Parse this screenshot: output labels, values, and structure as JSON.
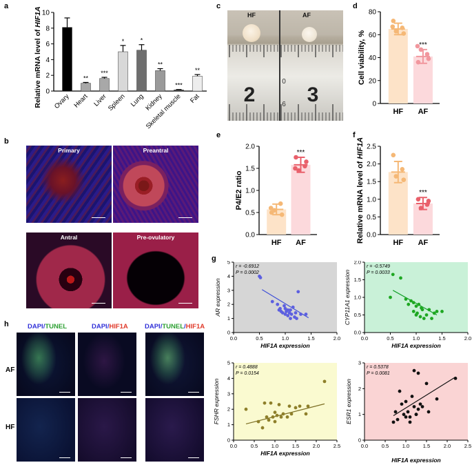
{
  "panels": {
    "a": {
      "label": "a",
      "chart_data": {
        "type": "bar",
        "ylabel": "Relative mRNA level of HIF1A",
        "ylim": [
          0,
          10
        ],
        "yticks": [
          "0",
          "2",
          "4",
          "6",
          "8",
          "10"
        ],
        "categories": [
          "Ovary",
          "Heart",
          "Liver",
          "Spleen",
          "Lung",
          "Kidney",
          "Skeletal muscle",
          "Fat"
        ],
        "values": [
          8.1,
          1.0,
          1.6,
          5.0,
          5.2,
          2.6,
          0.15,
          1.9
        ],
        "errors": [
          1.2,
          0.1,
          0.15,
          0.8,
          0.7,
          0.25,
          0.05,
          0.2
        ],
        "stars": [
          "",
          "**",
          "***",
          "*",
          "*",
          "**",
          "***",
          "**"
        ],
        "colors": [
          "#000000",
          "#a8a8a8",
          "#a8a8a8",
          "#d8d8d8",
          "#6e6e6e",
          "#9a9a9a",
          "#4a4a4a",
          "#ededed"
        ]
      }
    },
    "b": {
      "label": "b",
      "titles": [
        "Primary",
        "Preantral",
        "Antral",
        "Pre-ovulatory"
      ]
    },
    "c": {
      "label": "c",
      "left_label": "HF",
      "right_label": "AF",
      "ruler_digits": [
        "2",
        "3",
        "0",
        "6"
      ]
    },
    "d": {
      "label": "d",
      "chart_data": {
        "type": "bar",
        "ylabel": "Cell viability, %",
        "ylim": [
          0,
          80
        ],
        "yticks": [
          "0",
          "20",
          "40",
          "60",
          "80"
        ],
        "categories": [
          "HF",
          "AF"
        ],
        "values": [
          65,
          41
        ],
        "errors": [
          5,
          6
        ],
        "points": [
          [
            72,
            66,
            63,
            61,
            67
          ],
          [
            36,
            43,
            47,
            39,
            50
          ]
        ],
        "stars": [
          "",
          "***"
        ],
        "fill_colors": [
          "#fde3c8",
          "#fcd9dc"
        ],
        "point_colors": [
          "#f5b876",
          "#f1979e"
        ]
      }
    },
    "e": {
      "label": "e",
      "chart_data": {
        "type": "bar",
        "ylabel": "P4/E2 ratio",
        "ylim": [
          0,
          2.0
        ],
        "yticks": [
          "0.0",
          "0.5",
          "1.0",
          "1.5",
          "2.0"
        ],
        "categories": [
          "HF",
          "AF"
        ],
        "values": [
          0.57,
          1.58
        ],
        "errors": [
          0.12,
          0.17
        ],
        "points": [
          [
            0.5,
            0.7,
            0.55,
            0.45,
            0.6
          ],
          [
            1.75,
            1.55,
            1.45,
            1.65,
            1.5
          ]
        ],
        "stars": [
          "",
          "***"
        ],
        "fill_colors": [
          "#fde3c8",
          "#fcd9dc"
        ],
        "point_colors": [
          "#f5b876",
          "#e9606b"
        ]
      }
    },
    "f": {
      "label": "f",
      "chart_data": {
        "type": "bar",
        "ylabel": "Relative mRNA level of HIF1A",
        "ylim": [
          0,
          2.5
        ],
        "yticks": [
          "0.0",
          "0.5",
          "1.0",
          "1.5",
          "2.0",
          "2.5"
        ],
        "categories": [
          "HF",
          "AF"
        ],
        "values": [
          1.77,
          0.88
        ],
        "errors": [
          0.3,
          0.17
        ],
        "points": [
          [
            2.25,
            1.85,
            1.65,
            1.55
          ],
          [
            1.0,
            0.85,
            0.75,
            0.95
          ]
        ],
        "stars": [
          "",
          "***"
        ],
        "fill_colors": [
          "#fde3c8",
          "#fcd9dc"
        ],
        "point_colors": [
          "#f5b876",
          "#e9606b"
        ]
      }
    },
    "g": {
      "label": "g",
      "charts": [
        {
          "type": "scatter",
          "ylabel": "AR expression",
          "xlabel": "HIF1A expression",
          "r_text": "r = -0.6912",
          "p_text": "P = 0.0002",
          "xlim": [
            0,
            2.0
          ],
          "ylim": [
            0,
            5
          ],
          "xticks": [
            "0.0",
            "0.5",
            "1.0",
            "1.5",
            "2.0"
          ],
          "yticks": [
            "0",
            "1",
            "2",
            "3",
            "4",
            "5"
          ],
          "bg": "#d6d6d6",
          "point_color": "#5c5fe0",
          "line_color": "#3e4fd8",
          "line": [
            [
              0.55,
              3.05
            ],
            [
              1.45,
              1.05
            ]
          ],
          "x": [
            0.5,
            0.52,
            0.75,
            0.85,
            0.88,
            0.9,
            0.92,
            0.95,
            0.98,
            1.0,
            1.0,
            1.02,
            1.05,
            1.05,
            1.08,
            1.1,
            1.1,
            1.12,
            1.15,
            1.18,
            1.2,
            1.22,
            1.25,
            1.3,
            1.4
          ],
          "y": [
            4.0,
            3.9,
            2.2,
            2.0,
            1.6,
            1.7,
            1.5,
            1.4,
            1.9,
            1.7,
            1.3,
            1.5,
            1.6,
            1.2,
            1.4,
            1.6,
            1.0,
            1.3,
            1.8,
            1.1,
            1.4,
            1.0,
            2.9,
            1.3,
            1.3
          ]
        },
        {
          "type": "scatter",
          "ylabel": "CYP11A1 expression",
          "xlabel": "HIF1A expression",
          "r_text": "r = -0.5749",
          "p_text": "P = 0.0033",
          "xlim": [
            0,
            2.0
          ],
          "ylim": [
            0,
            2.0
          ],
          "xticks": [
            "0.0",
            "0.5",
            "1.0",
            "1.5",
            "2.0"
          ],
          "yticks": [
            "0.0",
            "0.5",
            "1.0",
            "1.5",
            "2.0"
          ],
          "bg": "#c9f1d8",
          "point_color": "#1ea722",
          "line_color": "#14a02a",
          "line": [
            [
              0.55,
              1.2
            ],
            [
              1.4,
              0.5
            ]
          ],
          "x": [
            0.5,
            0.55,
            0.7,
            0.8,
            0.85,
            0.9,
            0.95,
            0.95,
            1.0,
            1.0,
            1.02,
            1.05,
            1.08,
            1.1,
            1.12,
            1.15,
            1.2,
            1.25,
            1.3,
            1.35,
            1.4,
            1.5
          ],
          "y": [
            1.0,
            1.65,
            1.55,
            0.95,
            0.8,
            0.9,
            0.85,
            0.6,
            0.75,
            0.5,
            0.55,
            0.8,
            0.45,
            0.7,
            0.65,
            0.4,
            0.5,
            0.65,
            0.4,
            0.55,
            0.6,
            0.6
          ]
        },
        {
          "type": "scatter",
          "ylabel": "FSHR expression",
          "xlabel": "HIF1A expression",
          "r_text": "r = 0.4888",
          "p_text": "P = 0.0154",
          "xlim": [
            0,
            2.5
          ],
          "ylim": [
            0,
            5
          ],
          "xticks": [
            "0.0",
            "0.5",
            "1.0",
            "1.5",
            "2.0",
            "2.5"
          ],
          "yticks": [
            "0",
            "1",
            "2",
            "3",
            "4",
            "5"
          ],
          "bg": "#fafad0",
          "point_color": "#8e7f2a",
          "line_color": "#7c6e24",
          "line": [
            [
              0.3,
              1.05
            ],
            [
              2.2,
              2.35
            ]
          ],
          "x": [
            0.3,
            0.6,
            0.7,
            0.75,
            0.8,
            0.85,
            0.9,
            0.95,
            1.0,
            1.0,
            1.05,
            1.1,
            1.15,
            1.2,
            1.3,
            1.35,
            1.4,
            1.5,
            1.6,
            1.75,
            1.8,
            2.2
          ],
          "y": [
            2.0,
            1.2,
            0.8,
            2.4,
            1.5,
            1.3,
            2.4,
            1.5,
            1.8,
            1.2,
            1.6,
            2.3,
            1.5,
            1.7,
            1.5,
            2.2,
            1.7,
            2.1,
            2.2,
            1.7,
            2.2,
            3.8
          ]
        },
        {
          "type": "scatter",
          "ylabel": "ESR1 expression",
          "xlabel": "HIF1A expression",
          "r_text": "r = 0.5378",
          "p_text": "P = 0.0081",
          "xlim": [
            0,
            2.5
          ],
          "ylim": [
            0,
            3
          ],
          "xticks": [
            "0.0",
            "0.5",
            "1.0",
            "1.5",
            "2.0",
            "2.5"
          ],
          "yticks": [
            "0",
            "1",
            "2",
            "3"
          ],
          "bg": "#fad4d4",
          "point_color": "#111111",
          "line_color": "#111111",
          "line": [
            [
              0.7,
              0.95
            ],
            [
              2.2,
              2.45
            ]
          ],
          "x": [
            0.7,
            0.75,
            0.8,
            0.85,
            0.9,
            0.95,
            1.0,
            1.0,
            1.05,
            1.1,
            1.15,
            1.2,
            1.2,
            1.25,
            1.3,
            1.3,
            1.35,
            1.4,
            1.5,
            1.55,
            1.75,
            2.2,
            1.25,
            1.1
          ],
          "y": [
            0.7,
            1.1,
            0.8,
            1.9,
            1.4,
            1.0,
            1.5,
            0.9,
            1.1,
            0.9,
            1.7,
            2.7,
            1.3,
            1.0,
            2.6,
            1.2,
            1.4,
            1.3,
            2.2,
            1.1,
            1.6,
            2.4,
            1.0,
            0.7
          ]
        }
      ]
    },
    "h": {
      "label": "h",
      "col_headers": [
        [
          {
            "t": "DAPI",
            "c": "#3232d8"
          },
          {
            "t": "/",
            "c": "#3232d8"
          },
          {
            "t": "TUNEL",
            "c": "#2ea033"
          }
        ],
        [
          {
            "t": "DAPI",
            "c": "#3232d8"
          },
          {
            "t": "/",
            "c": "#3232d8"
          },
          {
            "t": "HIF1A",
            "c": "#e03a2a"
          }
        ],
        [
          {
            "t": "DAPI",
            "c": "#3232d8"
          },
          {
            "t": "/",
            "c": "#3232d8"
          },
          {
            "t": "TUNEL",
            "c": "#2ea033"
          },
          {
            "t": "/",
            "c": "#3232d8"
          },
          {
            "t": "HIF1A",
            "c": "#e03a2a"
          }
        ]
      ],
      "row_labels": [
        "AF",
        "HF"
      ]
    }
  }
}
